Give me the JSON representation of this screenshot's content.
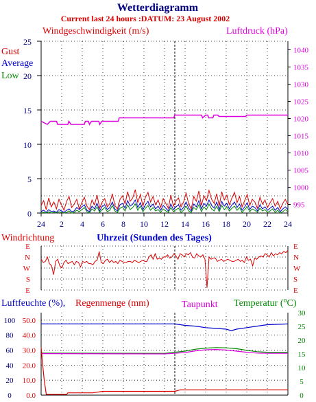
{
  "header": {
    "title": "Wetterdiagramm",
    "subtitle": "Current last 24 hours :DATUM: 23 August 2002"
  },
  "colors": {
    "navy": "#000080",
    "red": "#dd0000",
    "magenta": "#dd00dd",
    "blue": "#0000cc",
    "green": "#008800",
    "black": "#000000"
  },
  "chart_data": [
    {
      "type": "line",
      "id": "wind",
      "left_label": "Windgeschwindigkeit (m/s)",
      "right_label": "Luftdruck (hPa)",
      "legend": [
        "Gust",
        "Average",
        "Low"
      ],
      "y_left": {
        "ticks": [
          0,
          5,
          10,
          15,
          20,
          25
        ],
        "range": [
          0,
          25
        ]
      },
      "y_right": {
        "ticks": [
          995,
          1000,
          1005,
          1010,
          1015,
          1020,
          1025,
          1030,
          1035,
          1040
        ],
        "range": [
          992.5,
          1042.5
        ]
      },
      "x_ticks": [
        "24",
        "2",
        "4",
        "6",
        "8",
        "10",
        "12",
        "14",
        "16",
        "18",
        "20",
        "22",
        "24"
      ],
      "grid": true,
      "pressure_hpa": [
        [
          0,
          1019.2
        ],
        [
          0.6,
          1018.3
        ],
        [
          0.9,
          1019.2
        ],
        [
          1.5,
          1019.2
        ],
        [
          1.6,
          1018.3
        ],
        [
          2.6,
          1018.3
        ],
        [
          2.7,
          1019.2
        ],
        [
          2.9,
          1018.3
        ],
        [
          4.2,
          1018.3
        ],
        [
          4.3,
          1019.2
        ],
        [
          4.6,
          1019.2
        ],
        [
          4.7,
          1018.3
        ],
        [
          4.9,
          1019.2
        ],
        [
          5.6,
          1019.2
        ],
        [
          5.7,
          1018.3
        ],
        [
          5.9,
          1019.2
        ],
        [
          7.5,
          1019.2
        ],
        [
          7.6,
          1020.2
        ],
        [
          12.9,
          1020.2
        ],
        [
          13.0,
          1021.0
        ],
        [
          15.6,
          1021.0
        ],
        [
          15.7,
          1020.2
        ],
        [
          16.0,
          1021.0
        ],
        [
          16.2,
          1021.0
        ],
        [
          16.3,
          1020.2
        ],
        [
          16.7,
          1020.2
        ],
        [
          16.8,
          1021.0
        ],
        [
          17.2,
          1021.0
        ],
        [
          17.3,
          1020.6
        ],
        [
          19.9,
          1020.6
        ],
        [
          20.0,
          1021.0
        ],
        [
          24,
          1021.0
        ]
      ],
      "gust_ms": [
        1.1,
        1.8,
        0.5,
        2.2,
        0.9,
        1.6,
        0.6,
        2.0,
        1.2,
        0.4,
        1.7,
        2.4,
        0.8,
        1.3,
        2.0,
        0.6,
        1.5,
        2.3,
        1.0,
        0.5,
        1.9,
        1.2,
        2.6,
        0.7,
        1.6,
        2.1,
        0.9,
        1.4,
        2.8,
        1.1,
        0.6,
        2.0,
        2.5,
        1.3,
        3.1,
        1.7,
        2.2,
        3.4,
        1.5,
        2.7,
        1.0,
        2.3,
        3.0,
        1.6,
        2.4,
        1.2,
        1.9,
        0.8,
        2.1,
        1.4,
        0.7,
        2.6,
        1.0,
        1.8,
        2.2,
        0.9,
        1.6,
        2.9,
        1.3,
        0.6,
        2.4,
        1.7,
        3.2,
        1.1,
        2.5,
        1.8,
        3.3,
        2.0,
        1.4,
        2.8,
        1.0,
        3.1,
        1.9,
        2.6,
        1.2,
        2.2,
        3.0,
        1.5,
        2.4,
        0.9,
        1.8,
        2.7,
        1.1,
        2.0,
        1.6,
        0.7,
        2.3,
        1.3,
        1.9,
        0.8,
        1.5,
        2.1,
        1.0,
        1.7,
        0.6,
        1.4,
        2.0,
        1.2
      ],
      "average_ms": [
        0.2,
        0.4,
        0.1,
        0.5,
        0.2,
        0.3,
        0.1,
        0.5,
        0.3,
        0.1,
        0.4,
        0.6,
        0.2,
        0.3,
        0.8,
        0.5,
        0.9,
        1.2,
        0.4,
        0.2,
        1.0,
        0.6,
        1.4,
        0.3,
        1.0,
        1.2,
        0.5,
        0.8,
        1.6,
        0.6,
        0.3,
        1.2,
        1.4,
        0.7,
        1.8,
        1.0,
        1.3,
        1.9,
        0.8,
        1.5,
        0.5,
        1.2,
        1.7,
        0.9,
        1.3,
        0.6,
        1.0,
        0.4,
        1.1,
        0.7,
        0.3,
        1.3,
        0.5,
        0.9,
        1.2,
        0.4,
        0.8,
        1.6,
        0.7,
        0.3,
        1.3,
        0.9,
        1.8,
        0.6,
        1.4,
        1.0,
        1.9,
        1.1,
        0.7,
        1.6,
        0.5,
        1.7,
        1.0,
        1.4,
        0.6,
        1.2,
        1.6,
        0.8,
        1.3,
        0.4,
        0.9,
        1.5,
        0.5,
        1.0,
        0.8,
        0.3,
        1.2,
        0.6,
        0.9,
        0.4,
        0.7,
        1.0,
        0.4,
        0.8,
        0.2,
        0.6,
        0.9,
        0.5
      ],
      "low_ms": [
        0.0,
        0.1,
        0.0,
        0.2,
        0.0,
        0.1,
        0.0,
        0.2,
        0.1,
        0.0,
        0.1,
        0.3,
        0.0,
        0.1,
        0.4,
        0.2,
        0.5,
        0.8,
        0.2,
        0.0,
        0.6,
        0.3,
        0.9,
        0.1,
        0.5,
        0.8,
        0.2,
        0.4,
        1.1,
        0.3,
        0.1,
        0.7,
        0.9,
        0.3,
        1.2,
        0.5,
        0.8,
        1.3,
        0.4,
        1.0,
        0.2,
        0.7,
        1.1,
        0.4,
        0.8,
        0.3,
        0.5,
        0.1,
        0.6,
        0.3,
        0.1,
        0.8,
        0.2,
        0.5,
        0.7,
        0.1,
        0.4,
        1.0,
        0.3,
        0.1,
        0.8,
        0.5,
        1.2,
        0.2,
        0.9,
        0.5,
        1.3,
        0.6,
        0.3,
        1.0,
        0.2,
        1.1,
        0.5,
        0.9,
        0.3,
        0.7,
        1.0,
        0.4,
        0.8,
        0.1,
        0.5,
        0.9,
        0.2,
        0.6,
        0.4,
        0.1,
        0.7,
        0.3,
        0.5,
        0.1,
        0.3,
        0.6,
        0.1,
        0.4,
        0.0,
        0.2,
        0.5,
        0.2
      ]
    },
    {
      "type": "line",
      "id": "direction",
      "left_label": "Windrichtung",
      "center_label": "Uhrzeit (Stunden des Tages)",
      "y_ticks": [
        "E",
        "N",
        "W",
        "S",
        "E"
      ],
      "grid": true,
      "direction_level": [
        2.8,
        2.5,
        2.6,
        3.0,
        2.4,
        2.2,
        1.4,
        2.6,
        2.8,
        2.2,
        2.0,
        2.5,
        2.7,
        2.4,
        2.5,
        2.6,
        2.3,
        2.6,
        2.5,
        2.1,
        2.6,
        2.5,
        2.6,
        2.4,
        2.4,
        2.3,
        2.6,
        2.7,
        3.5,
        2.5,
        2.4,
        2.7,
        2.8,
        2.5,
        2.7,
        2.5,
        2.6,
        2.4,
        2.7,
        2.6,
        2.5,
        2.5,
        2.6,
        2.6,
        2.5,
        2.7,
        2.6,
        2.5,
        2.6,
        2.7,
        2.6,
        2.6,
        3.0,
        3.2,
        2.8,
        3.3,
        2.8,
        2.9,
        2.8,
        3.0,
        3.0,
        3.2,
        2.9,
        3.0,
        3.3,
        3.1,
        2.8,
        3.3,
        3.2,
        3.0,
        3.3,
        3.2,
        3.4,
        3.0,
        2.9,
        3.3,
        3.1,
        3.0,
        3.2,
        2.8,
        0.2,
        3.0,
        2.8,
        2.9,
        2.9,
        2.6,
        2.7,
        2.8,
        2.6,
        2.7,
        2.8,
        2.7,
        2.6,
        2.6,
        2.7,
        2.8,
        2.6,
        2.7,
        2.5,
        3.0,
        2.7,
        2.8,
        2.2,
        2.9,
        2.8,
        3.0,
        3.1,
        3.0,
        3.3,
        3.2,
        3.0,
        3.4,
        3.1,
        3.3,
        3.2,
        3.4,
        3.3,
        3.5,
        3.4,
        3.6
      ]
    },
    {
      "type": "line",
      "id": "humidity",
      "labels": {
        "humidity": "Luftfeuchte (%),",
        "rain": "Regenmenge (mm)",
        "dewpoint": "Taupunkt",
        "temperature": "Temperatur (",
        "temperature_unit": "C)"
      },
      "y_left_outer": {
        "ticks": [
          "0",
          "20",
          "40",
          "60",
          "80",
          "100"
        ],
        "range": [
          0,
          110
        ]
      },
      "y_left_inner": {
        "ticks": [
          "0.0",
          "10.0",
          "20.0",
          "30.0",
          "40.0",
          "50.0"
        ],
        "range": [
          0,
          55
        ]
      },
      "y_right": {
        "ticks": [
          "0",
          "5",
          "10",
          "15",
          "20",
          "25",
          "30"
        ],
        "range": [
          0,
          30
        ]
      },
      "grid": true,
      "humidity_pct": [
        [
          0,
          95
        ],
        [
          11,
          95
        ],
        [
          13,
          95
        ],
        [
          14,
          93
        ],
        [
          15,
          92
        ],
        [
          16,
          90
        ],
        [
          17,
          89
        ],
        [
          18,
          88
        ],
        [
          18.5,
          86
        ],
        [
          19,
          88
        ],
        [
          20,
          90
        ],
        [
          21,
          92
        ],
        [
          22,
          94
        ],
        [
          24,
          95
        ]
      ],
      "temperature_c": [
        [
          0,
          15.3
        ],
        [
          12,
          15.2
        ],
        [
          13,
          15.6
        ],
        [
          14,
          16.0
        ],
        [
          15,
          16.7
        ],
        [
          16,
          17.1
        ],
        [
          17,
          17.3
        ],
        [
          18,
          17.2
        ],
        [
          19,
          16.9
        ],
        [
          20,
          16.3
        ],
        [
          21,
          15.8
        ],
        [
          22,
          15.6
        ],
        [
          24,
          15.6
        ]
      ],
      "dewpoint_c": [
        [
          0,
          15.1
        ],
        [
          12,
          15.0
        ],
        [
          13,
          15.2
        ],
        [
          14,
          15.5
        ],
        [
          15,
          16.1
        ],
        [
          16,
          16.5
        ],
        [
          17,
          16.6
        ],
        [
          18,
          16.4
        ],
        [
          19,
          16.0
        ],
        [
          20,
          15.6
        ],
        [
          21,
          15.3
        ],
        [
          22,
          15.2
        ],
        [
          24,
          15.2
        ]
      ],
      "rain_mm": [
        [
          0,
          32
        ],
        [
          0.15,
          20
        ],
        [
          0.3,
          10
        ],
        [
          0.5,
          0.5
        ],
        [
          2.5,
          0.5
        ],
        [
          2.6,
          1.5
        ],
        [
          5,
          1.5
        ],
        [
          6,
          2.5
        ],
        [
          13,
          2.5
        ],
        [
          13.5,
          3.5
        ],
        [
          24,
          3.5
        ]
      ]
    }
  ]
}
